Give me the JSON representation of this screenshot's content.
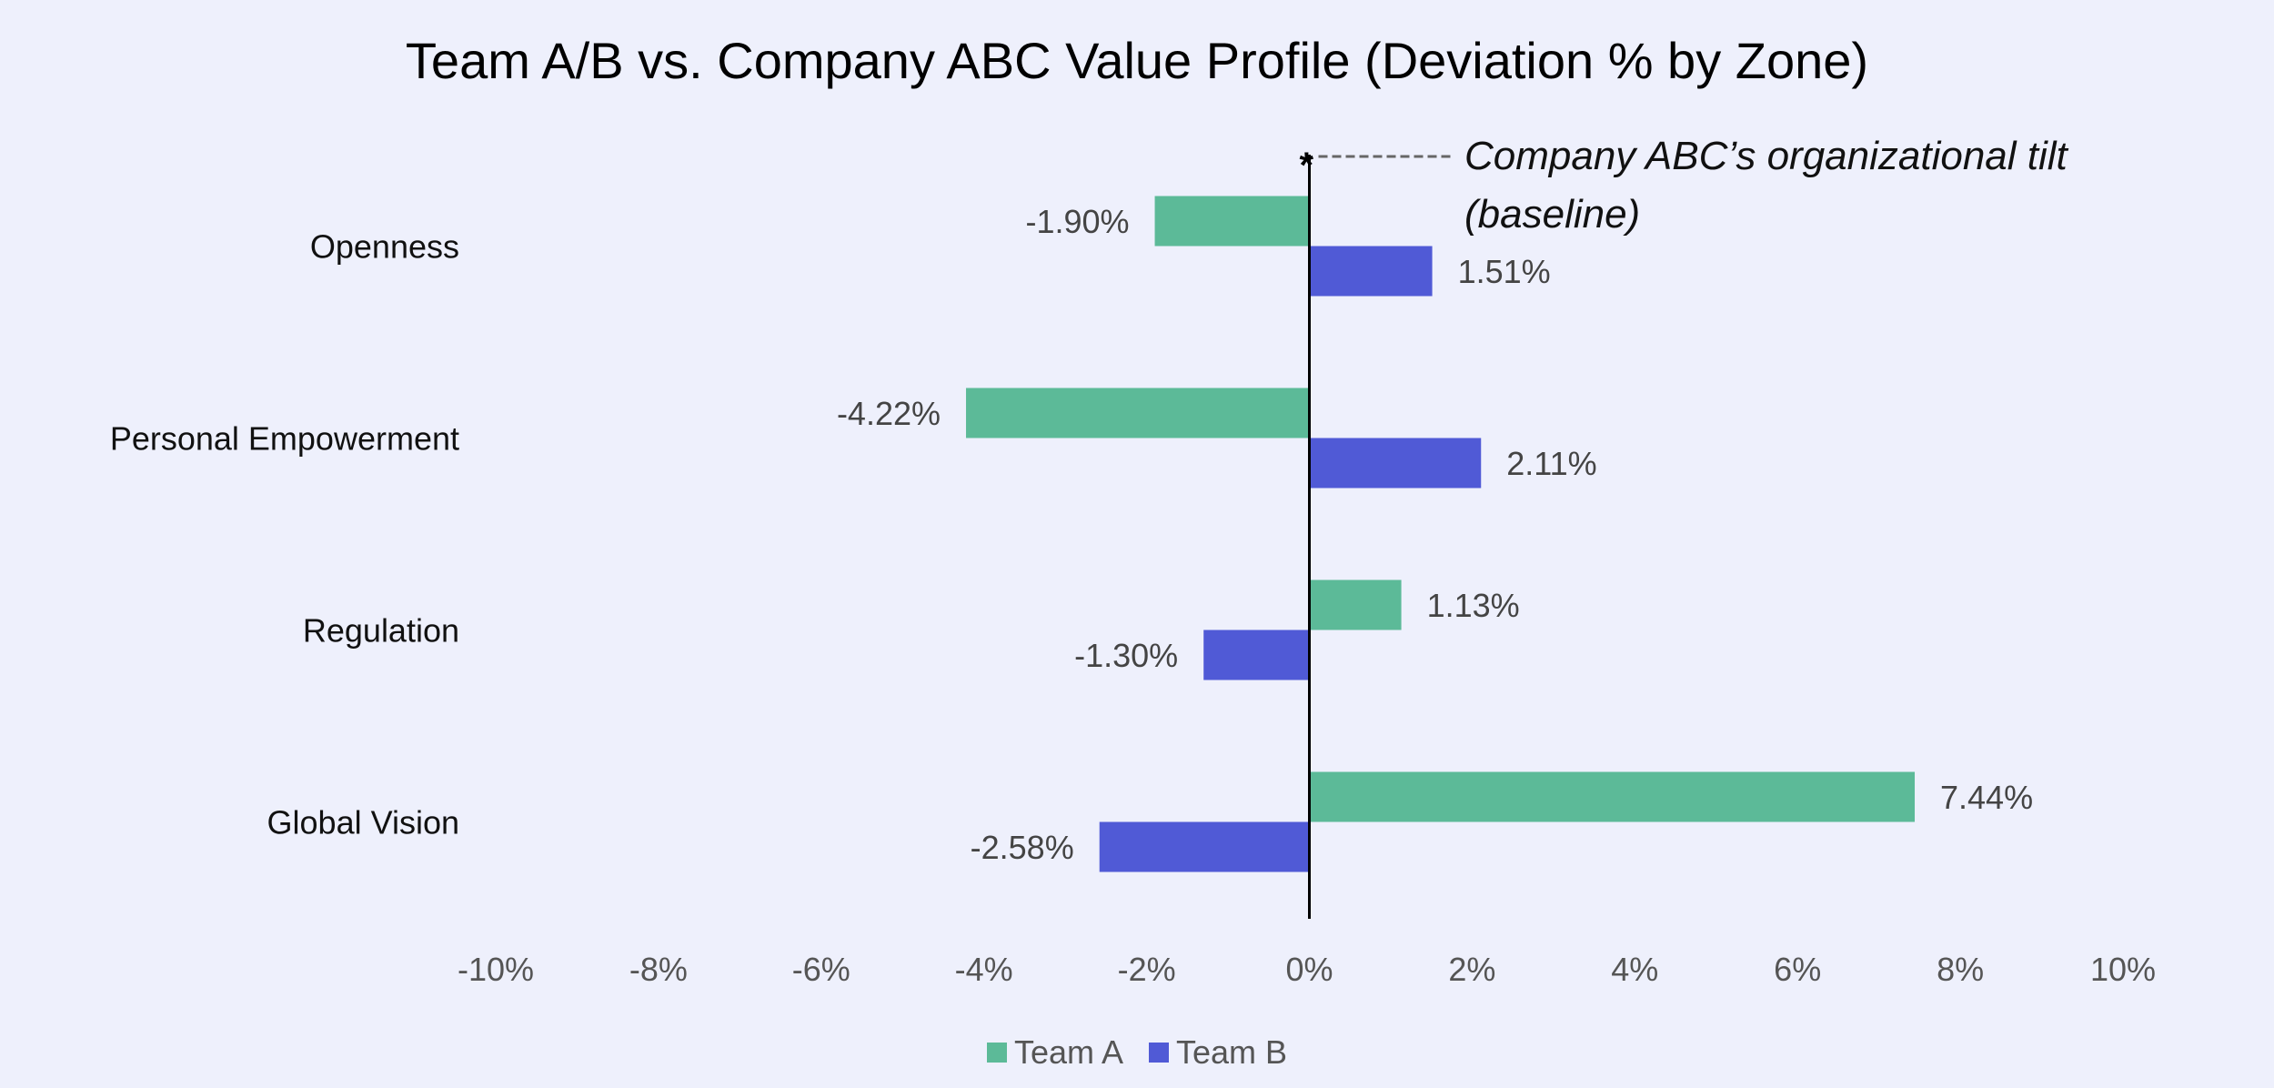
{
  "chart_data": {
    "type": "bar",
    "orientation": "horizontal",
    "title_parts": [
      "Team A/B",
      " vs. ",
      "Company ABC",
      " Value Profile (Deviation % by Zone)"
    ],
    "categories": [
      "Openness",
      "Personal Empowerment",
      "Regulation",
      "Global Vision"
    ],
    "series": [
      {
        "name": "Team A",
        "color": "#5cba98",
        "values": [
          -1.9,
          -4.22,
          1.13,
          7.44
        ],
        "labels": [
          "-1.90%",
          "-4.22%",
          "1.13%",
          "7.44%"
        ]
      },
      {
        "name": "Team B",
        "color": "#505ad6",
        "values": [
          1.51,
          2.11,
          -1.3,
          -2.58
        ],
        "labels": [
          "1.51%",
          "2.11%",
          "-1.30%",
          "-2.58%"
        ]
      }
    ],
    "xlim": [
      -10,
      10
    ],
    "xticks": [
      -10,
      -8,
      -6,
      -4,
      -2,
      0,
      2,
      4,
      6,
      8,
      10
    ],
    "xtick_labels": [
      "-10%",
      "-8%",
      "-6%",
      "-4%",
      "-2%",
      "0%",
      "2%",
      "4%",
      "6%",
      "8%",
      "10%"
    ],
    "grid": false,
    "legend_position": "bottom",
    "annotation": {
      "line1": "Company ABC’s organizational tilt",
      "line2": "(baseline)",
      "marker": "*"
    }
  }
}
